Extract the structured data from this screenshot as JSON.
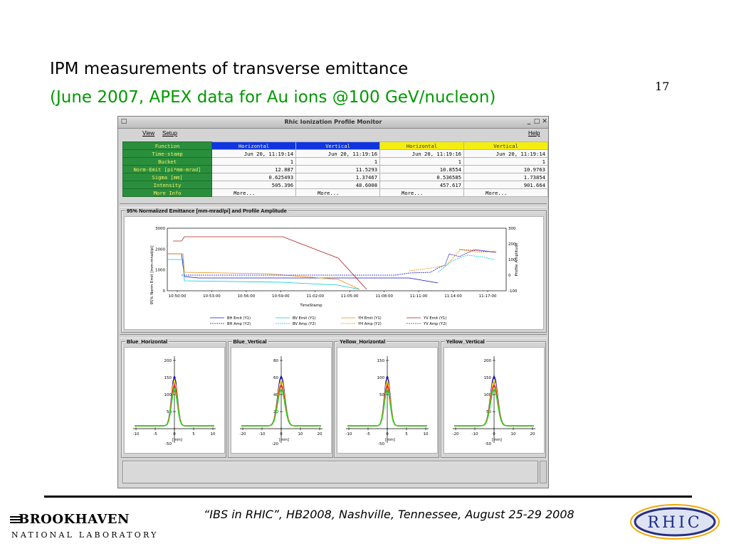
{
  "slide": {
    "title": "IPM measurements of transverse emittance",
    "subtitle": "(June 2007, APEX data for Au ions @100 GeV/nucleon)",
    "slide_number": "17",
    "footer": "“IBS in RHIC”, HB2008, Nashville, Tennessee, August 25-29  2008",
    "colors": {
      "subtitle": "#009900",
      "rule": "#000000"
    }
  },
  "logos": {
    "left": {
      "icon": "brookhaven-logo",
      "line1": "BROOKHAVEN",
      "line2": "NATIONAL LABORATORY"
    },
    "right": {
      "icon": "rhic-logo",
      "text": "RHIC"
    }
  },
  "window": {
    "title": "Rhic Ionization Profile Monitor",
    "buttons": [
      "_",
      "□",
      "✕"
    ],
    "menu": {
      "view": "View",
      "setup": "Setup",
      "help": "Help"
    }
  },
  "table": {
    "header_label": "Function",
    "columns": [
      "Horizontal",
      "Vertical",
      "Horizontal",
      "Vertical"
    ],
    "column_colors": [
      "#1035e0",
      "#1035e0",
      "#f4ee10",
      "#f4ee10"
    ],
    "rows": [
      {
        "label": "Time-stamp",
        "values": [
          "Jun 20, 11:19:14",
          "Jun 20, 11:19:16",
          "Jun 20, 11:19:16",
          "Jun 20, 11:19:14"
        ]
      },
      {
        "label": "Bucket",
        "values": [
          "1",
          "1",
          "1",
          "1"
        ]
      },
      {
        "label": "Norm-Emit [pi*mm-mrad]",
        "values": [
          "12.887",
          "11.5293",
          "10.8554",
          "10.9763"
        ]
      },
      {
        "label": "Sigma [mm]",
        "values": [
          "0.625493",
          "1.37467",
          "0.536585",
          "1.73854"
        ]
      },
      {
        "label": "Intensity",
        "values": [
          "505.396",
          "48.6008",
          "457.617",
          "901.664"
        ]
      },
      {
        "label": "More Info",
        "values": [
          "More...",
          "More...",
          "More...",
          "More..."
        ]
      }
    ]
  },
  "emittance_panel": {
    "label": "95% Normalized Emittance [mm-mrad/pi] and Profile Amplitude",
    "y_label": "95% Norm Emit [mm-mrad/pi]",
    "y2_label": "Profile Amplitude",
    "x_label": "TimeStamp",
    "y_ticks": [
      "0",
      "1000",
      "2000",
      "3000"
    ],
    "y2_ticks": [
      "-100",
      "0",
      "100",
      "200",
      "300"
    ],
    "x_ticks": [
      "10:50:00",
      "10:53:00",
      "10:56:00",
      "10:59:00",
      "11:02:00",
      "11:05:00",
      "11:08:00",
      "11:11:00",
      "11:14:00",
      "11:17:00"
    ],
    "legend": [
      {
        "label": "BH Emit (Y1)",
        "color": "#1010c0",
        "dash": false
      },
      {
        "label": "BV Emit (Y1)",
        "color": "#00c8e0",
        "dash": false
      },
      {
        "label": "YH Emit (Y1)",
        "color": "#f08c00",
        "dash": false
      },
      {
        "label": "YV Emit (Y1)",
        "color": "#b02020",
        "dash": false
      },
      {
        "label": "BH Amp (Y2)",
        "color": "#1010c0",
        "dash": true
      },
      {
        "label": "BV Amp (Y2)",
        "color": "#00c8e0",
        "dash": true
      },
      {
        "label": "YH Amp (Y2)",
        "color": "#f08c00",
        "dash": true
      },
      {
        "label": "YV Amp (Y2)",
        "color": "#b02020",
        "dash": true
      }
    ]
  },
  "profile_panels": [
    {
      "label": "Blue_Horizontal",
      "y_ticks": [
        "200",
        "150",
        "100",
        "50"
      ],
      "x_ticks": [
        "-10",
        "-5",
        "0",
        "5",
        "10"
      ],
      "x_unit": "[mm]",
      "y_bottom": "-50"
    },
    {
      "label": "Blue_Vertical",
      "y_ticks": [
        "80",
        "60",
        "40",
        "20"
      ],
      "x_ticks": [
        "-20",
        "-10",
        "0",
        "10",
        "20"
      ],
      "x_unit": "[mm]",
      "y_bottom": "-20"
    },
    {
      "label": "Yellow_Horizontal",
      "y_ticks": [
        "150",
        "100",
        "50"
      ],
      "x_ticks": [
        "-10",
        "-5",
        "0",
        "5",
        "10"
      ],
      "x_unit": "[mm]",
      "y_bottom": "-50"
    },
    {
      "label": "Yellow_Vertical",
      "y_ticks": [
        "200",
        "150",
        "100",
        "50"
      ],
      "x_ticks": [
        "-20",
        "-10",
        "0",
        "10",
        "20"
      ],
      "x_unit": "[mm]",
      "y_bottom": "-50"
    }
  ]
}
